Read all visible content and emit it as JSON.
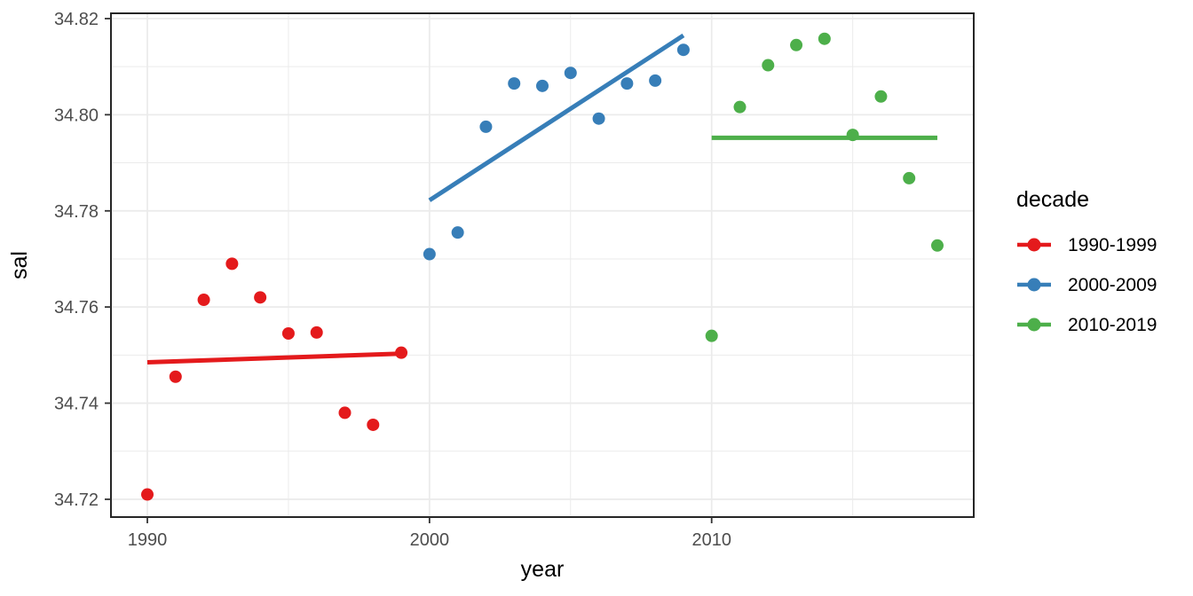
{
  "chart_data": {
    "type": "scatter",
    "title": "",
    "xlabel": "year",
    "ylabel": "sal",
    "xlim": [
      1988.71,
      2019.29
    ],
    "ylim": [
      34.7163,
      34.8211
    ],
    "x_ticks": [
      1990,
      2000,
      2010
    ],
    "x_minor_ticks": [
      1995,
      2005,
      2015
    ],
    "y_ticks": [
      34.72,
      34.74,
      34.76,
      34.78,
      34.8,
      34.82
    ],
    "y_minor_ticks": [
      34.73,
      34.75,
      34.77,
      34.79,
      34.81
    ],
    "grid": true,
    "legend_position": "right",
    "legend_title": "decade",
    "colors": {
      "grid": "#EBEBEB",
      "panel_border": "#262626",
      "tick_mark": "#333333",
      "tick_label": "#4D4D4D",
      "background": "#FFFFFF"
    },
    "series": [
      {
        "name": "1990-1999",
        "color": "#E41A1C",
        "points": [
          [
            1990,
            34.721
          ],
          [
            1991,
            34.7455
          ],
          [
            1992,
            34.7615
          ],
          [
            1993,
            34.769
          ],
          [
            1994,
            34.762
          ],
          [
            1995,
            34.7545
          ],
          [
            1996,
            34.7547
          ],
          [
            1997,
            34.738
          ],
          [
            1998,
            34.7355
          ],
          [
            1999,
            34.7505
          ]
        ],
        "trend": [
          [
            1990,
            34.7485
          ],
          [
            1999,
            34.7503
          ]
        ]
      },
      {
        "name": "2000-2009",
        "color": "#377EB8",
        "points": [
          [
            2000,
            34.771
          ],
          [
            2001,
            34.7755
          ],
          [
            2002,
            34.7975
          ],
          [
            2003,
            34.8065
          ],
          [
            2004,
            34.806
          ],
          [
            2005,
            34.8087
          ],
          [
            2006,
            34.7992
          ],
          [
            2007,
            34.8065
          ],
          [
            2008,
            34.8071
          ],
          [
            2009,
            34.8135
          ]
        ],
        "trend": [
          [
            2000,
            34.7822
          ],
          [
            2009,
            34.8165
          ]
        ]
      },
      {
        "name": "2010-2019",
        "color": "#4DAF4A",
        "points": [
          [
            2010,
            34.754
          ],
          [
            2011,
            34.8016
          ],
          [
            2012,
            34.8103
          ],
          [
            2013,
            34.8145
          ],
          [
            2014,
            34.8158
          ],
          [
            2015,
            34.7958
          ],
          [
            2016,
            34.8038
          ],
          [
            2017,
            34.7868
          ],
          [
            2018,
            34.7728
          ]
        ],
        "trend": [
          [
            2010,
            34.7952
          ],
          [
            2018,
            34.7952
          ]
        ]
      }
    ]
  }
}
